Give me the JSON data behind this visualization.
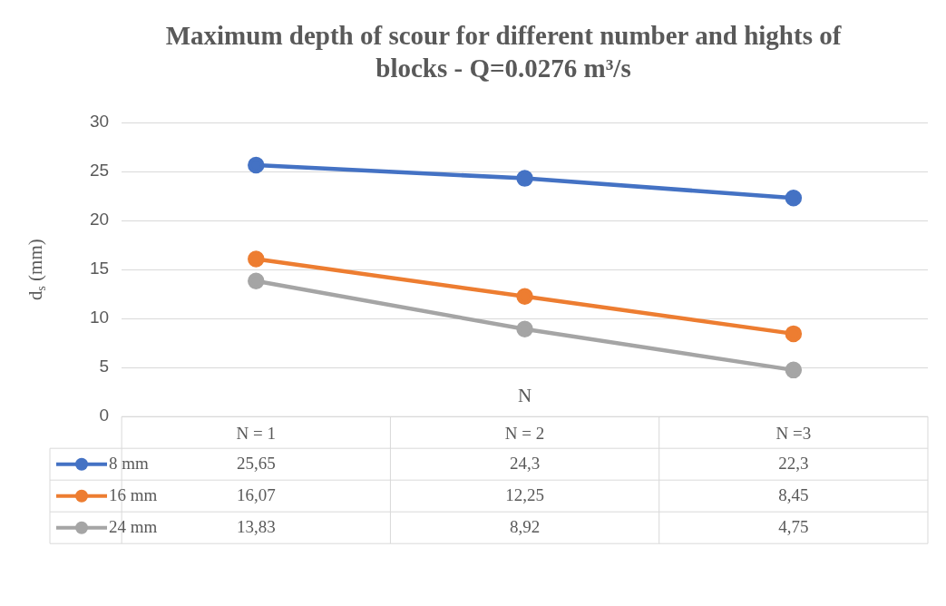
{
  "chart_data": {
    "type": "line",
    "title": "Maximum depth of scour for different number and hights of blocks - Q=0.0276 m³/s",
    "xlabel": "N",
    "ylabel": "d$_{s}$ (mm)",
    "categories": [
      "N = 1",
      "N = 2",
      "N =3"
    ],
    "series": [
      {
        "name": "8 mm",
        "color": "#4472c4",
        "values": [
          25.65,
          24.3,
          22.3
        ],
        "value_labels": [
          "25,65",
          "24,3",
          "22,3"
        ]
      },
      {
        "name": "16 mm",
        "color": "#ed7d31",
        "values": [
          16.07,
          12.25,
          8.45
        ],
        "value_labels": [
          "16,07",
          "12,25",
          "8,45"
        ]
      },
      {
        "name": "24 mm",
        "color": "#a5a5a5",
        "values": [
          13.83,
          8.92,
          4.75
        ],
        "value_labels": [
          "13,83",
          "8,92",
          "4,75"
        ]
      }
    ],
    "ylim": [
      0,
      30
    ],
    "yticks": [
      0,
      5,
      10,
      15,
      20,
      25,
      30
    ],
    "grid": "y",
    "legend": "bottom left",
    "marker": "circle",
    "line_style": "solid"
  }
}
